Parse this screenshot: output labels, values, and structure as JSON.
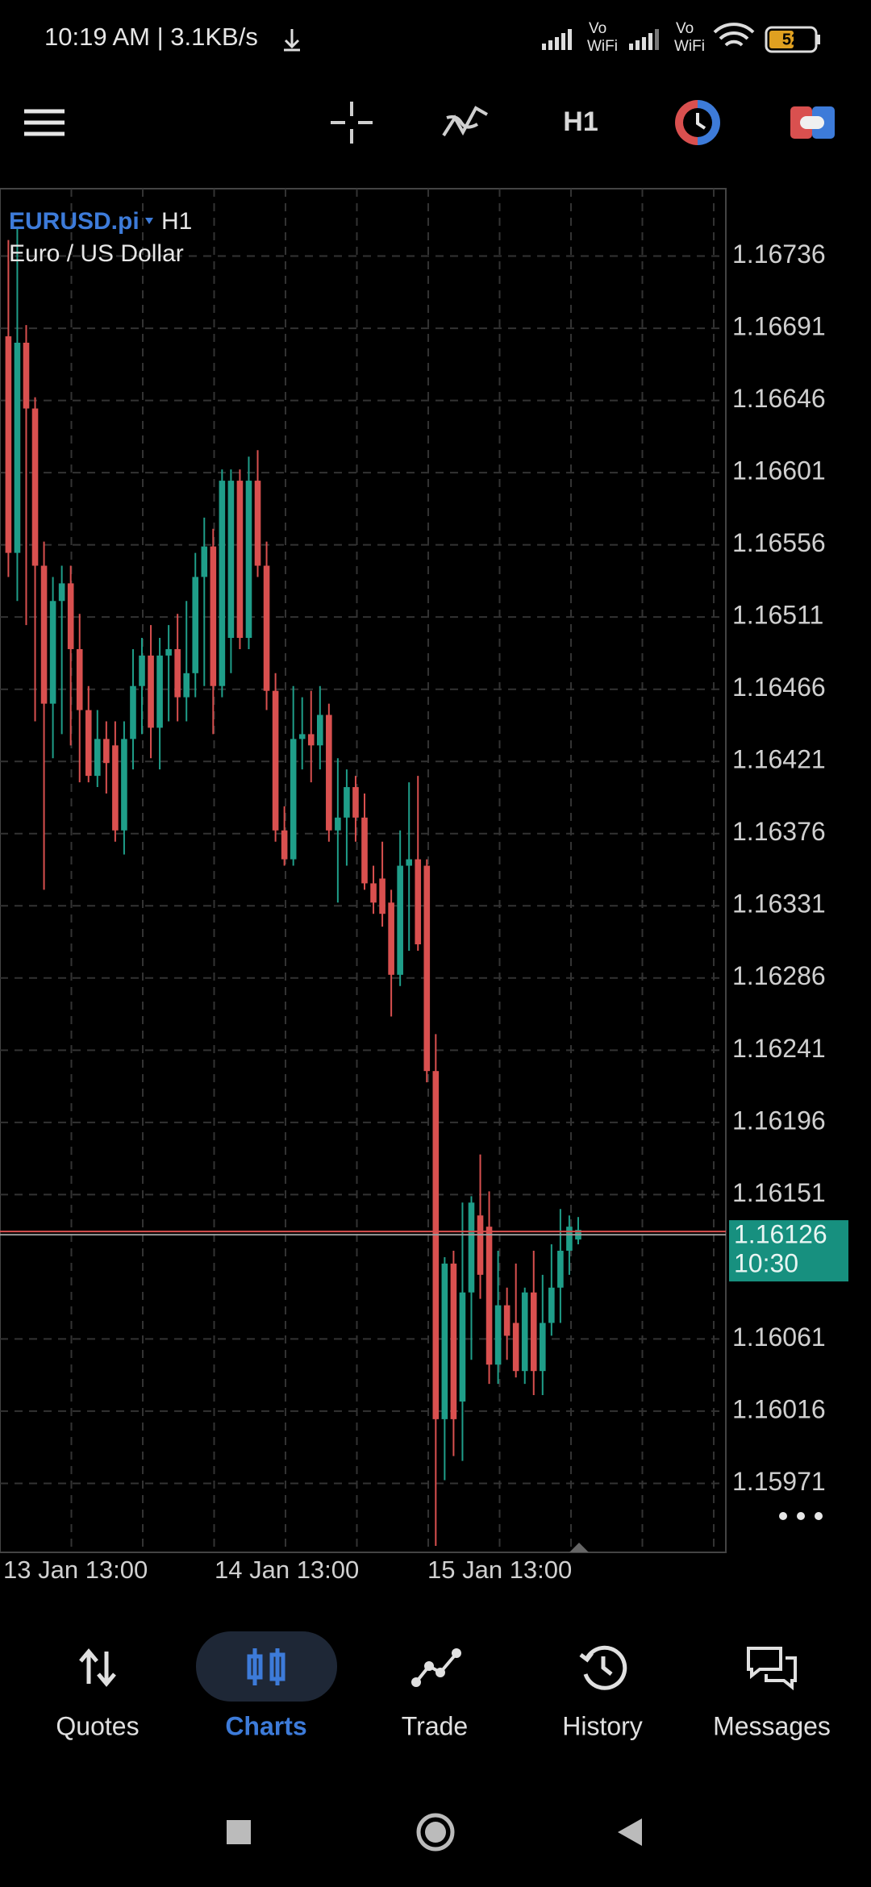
{
  "status_bar": {
    "time_speed": "10:19 AM | 3.1KB/s",
    "battery": "52",
    "signals": [
      {
        "top": "Vo",
        "bottom": "WiFi"
      },
      {
        "top": "Vo",
        "bottom": "WiFi"
      }
    ]
  },
  "toolbar": {
    "timeframe": "H1"
  },
  "chart_data": {
    "type": "candlestick",
    "symbol": "EURUSD.pi",
    "timeframe": "H1",
    "description": "Euro / US Dollar",
    "bull_color": "#1f9e89",
    "bear_color": "#d9504f",
    "open": [
      1.16686,
      1.16551,
      1.16682,
      1.16641,
      1.16543,
      1.16457,
      1.16521,
      1.16532,
      1.16491,
      1.16453,
      1.16412,
      1.16435,
      1.16431,
      1.16378,
      1.16435,
      1.16468,
      1.16487,
      1.16442,
      1.16487,
      1.16491,
      1.16461,
      1.16476,
      1.16536,
      1.16555,
      1.16468,
      1.16498,
      1.16596,
      1.16498,
      1.16596,
      1.16543,
      1.16465,
      1.16378,
      1.1636,
      1.16435,
      1.16438,
      1.16431,
      1.1645,
      1.16378,
      1.16386,
      1.16405,
      1.16386,
      1.16345,
      1.16348,
      1.16333,
      1.16288,
      1.16356,
      1.1636,
      1.16356,
      1.16228,
      1.16011,
      1.16108,
      1.16022,
      1.1609,
      1.16138,
      1.16131,
      1.16045,
      1.16082,
      1.16071,
      1.16041,
      1.1609,
      1.16041,
      1.16071,
      1.16093,
      1.16116,
      1.16123
    ],
    "high": [
      1.16746,
      1.16753,
      1.16693,
      1.16648,
      1.16558,
      1.16536,
      1.16543,
      1.16543,
      1.16513,
      1.16468,
      1.16453,
      1.16446,
      1.16446,
      1.16446,
      1.16491,
      1.16498,
      1.16506,
      1.16498,
      1.16506,
      1.16513,
      1.16521,
      1.16551,
      1.16573,
      1.16566,
      1.16603,
      1.16603,
      1.16603,
      1.16611,
      1.16615,
      1.16558,
      1.16476,
      1.16393,
      1.16468,
      1.16461,
      1.16465,
      1.16468,
      1.16457,
      1.16423,
      1.16416,
      1.16412,
      1.16401,
      1.16356,
      1.16371,
      1.16341,
      1.16378,
      1.16408,
      1.16412,
      1.1636,
      1.16251,
      1.16112,
      1.16116,
      1.16146,
      1.1615,
      1.16176,
      1.16153,
      1.16116,
      1.16093,
      1.16108,
      1.16093,
      1.16116,
      1.16101,
      1.1612,
      1.16142,
      1.16138,
      1.16137
    ],
    "low": [
      1.16536,
      1.16521,
      1.16506,
      1.16446,
      1.16341,
      1.16423,
      1.16438,
      1.16431,
      1.16408,
      1.16408,
      1.16405,
      1.16401,
      1.16371,
      1.16363,
      1.16416,
      1.16438,
      1.16423,
      1.16416,
      1.16446,
      1.16446,
      1.16446,
      1.16461,
      1.16468,
      1.16438,
      1.16461,
      1.16476,
      1.16491,
      1.16491,
      1.16536,
      1.16453,
      1.16371,
      1.16356,
      1.16356,
      1.16416,
      1.16408,
      1.16416,
      1.16371,
      1.16333,
      1.16356,
      1.16371,
      1.16341,
      1.16326,
      1.16318,
      1.16262,
      1.16281,
      1.16303,
      1.16303,
      1.16221,
      1.15932,
      1.15973,
      1.15988,
      1.15985,
      1.16048,
      1.16086,
      1.16033,
      1.16033,
      1.16048,
      1.16037,
      1.16033,
      1.16026,
      1.16026,
      1.16063,
      1.16071,
      1.16101,
      1.1612
    ],
    "close": [
      1.16551,
      1.16682,
      1.16641,
      1.16543,
      1.16457,
      1.16521,
      1.16532,
      1.16491,
      1.16453,
      1.16412,
      1.16435,
      1.1642,
      1.16378,
      1.16435,
      1.16468,
      1.16487,
      1.16442,
      1.16487,
      1.16491,
      1.16461,
      1.16476,
      1.16536,
      1.16555,
      1.16468,
      1.16596,
      1.16596,
      1.16498,
      1.16596,
      1.16543,
      1.16465,
      1.16378,
      1.1636,
      1.16435,
      1.16438,
      1.16431,
      1.1645,
      1.16378,
      1.16386,
      1.16405,
      1.16386,
      1.16345,
      1.16333,
      1.16326,
      1.16288,
      1.16356,
      1.1636,
      1.16307,
      1.16228,
      1.16011,
      1.16108,
      1.16011,
      1.1609,
      1.16146,
      1.16101,
      1.16045,
      1.16082,
      1.16063,
      1.16041,
      1.1609,
      1.16041,
      1.16071,
      1.16093,
      1.16116,
      1.16131,
      1.16129
    ],
    "ylim": [
      1.15928,
      1.16778
    ],
    "yticks": [
      1.16736,
      1.16691,
      1.16646,
      1.16601,
      1.16556,
      1.16511,
      1.16466,
      1.16421,
      1.16376,
      1.16331,
      1.16286,
      1.16241,
      1.16196,
      1.16151,
      1.16061,
      1.16016,
      1.15971
    ],
    "grid": true,
    "current_price": 1.16126,
    "current_time": "10:30",
    "xtick_labels": [
      "13 Jan 13:00",
      "14 Jan 13:00",
      "15 Jan 13:00"
    ]
  },
  "nav": {
    "items": [
      "Quotes",
      "Charts",
      "Trade",
      "History",
      "Messages"
    ],
    "active": 1
  }
}
